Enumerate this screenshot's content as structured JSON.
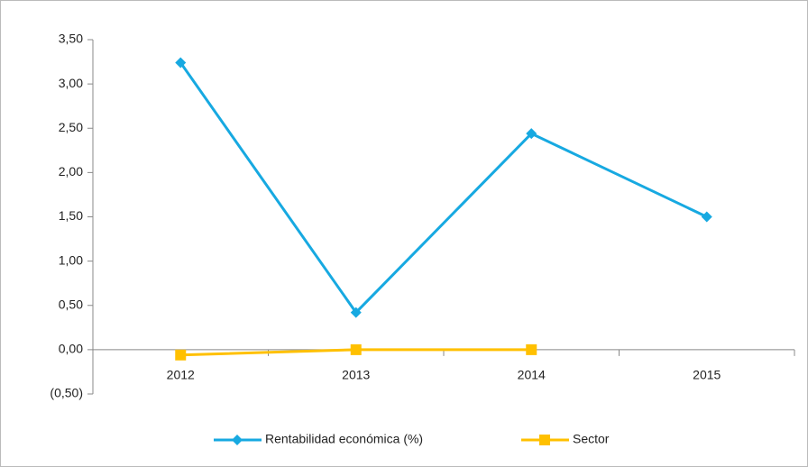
{
  "chart_data": {
    "type": "line",
    "categories": [
      "2012",
      "2013",
      "2014",
      "2015"
    ],
    "series": [
      {
        "name": "Rentabilidad económica (%)",
        "color": "#17a9e1",
        "marker": "diamond",
        "values": [
          3.24,
          0.42,
          2.44,
          1.5
        ]
      },
      {
        "name": "Sector",
        "color": "#ffc000",
        "marker": "square",
        "values": [
          -0.06,
          0,
          0,
          null
        ]
      }
    ],
    "ylim": [
      -0.5,
      3.5
    ],
    "yticks": [
      {
        "value": -0.5,
        "label": "(0,50)"
      },
      {
        "value": 0,
        "label": "0,00"
      },
      {
        "value": 0.5,
        "label": "0,50"
      },
      {
        "value": 1,
        "label": "1,00"
      },
      {
        "value": 1.5,
        "label": "1,50"
      },
      {
        "value": 2,
        "label": "2,00"
      },
      {
        "value": 2.5,
        "label": "2,50"
      },
      {
        "value": 3,
        "label": "3,00"
      },
      {
        "value": 3.5,
        "label": "3,50"
      }
    ],
    "grid": false,
    "legend": "bottom"
  }
}
